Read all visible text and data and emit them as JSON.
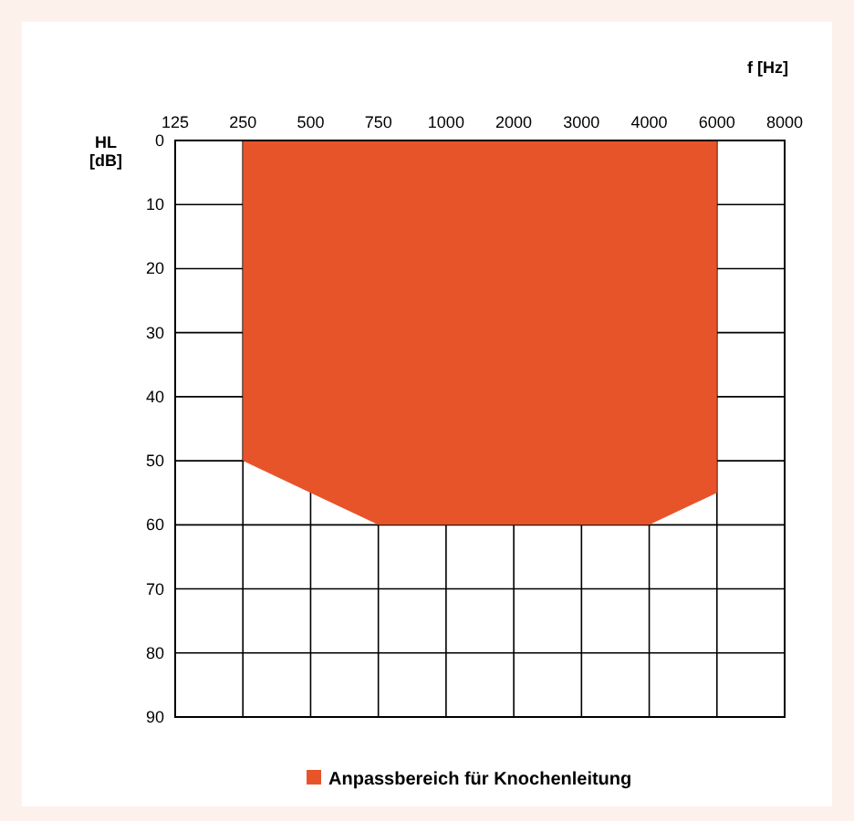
{
  "chart_data": {
    "type": "area",
    "xlabel": "f [Hz]",
    "ylabel": "HL [dB]",
    "categories": [
      "125",
      "250",
      "500",
      "750",
      "1000",
      "2000",
      "3000",
      "4000",
      "6000",
      "8000"
    ],
    "series": [
      {
        "name": "Anpassbereich für Knochenleitung",
        "color": "#e8542a",
        "values": [
          null,
          50,
          55,
          60,
          60,
          60,
          60,
          60,
          55,
          null
        ]
      }
    ],
    "ylim": [
      90,
      0
    ],
    "yticks": [
      0,
      10,
      20,
      30,
      40,
      50,
      60,
      70,
      80,
      90
    ],
    "grid": true,
    "legend": "bottom"
  }
}
